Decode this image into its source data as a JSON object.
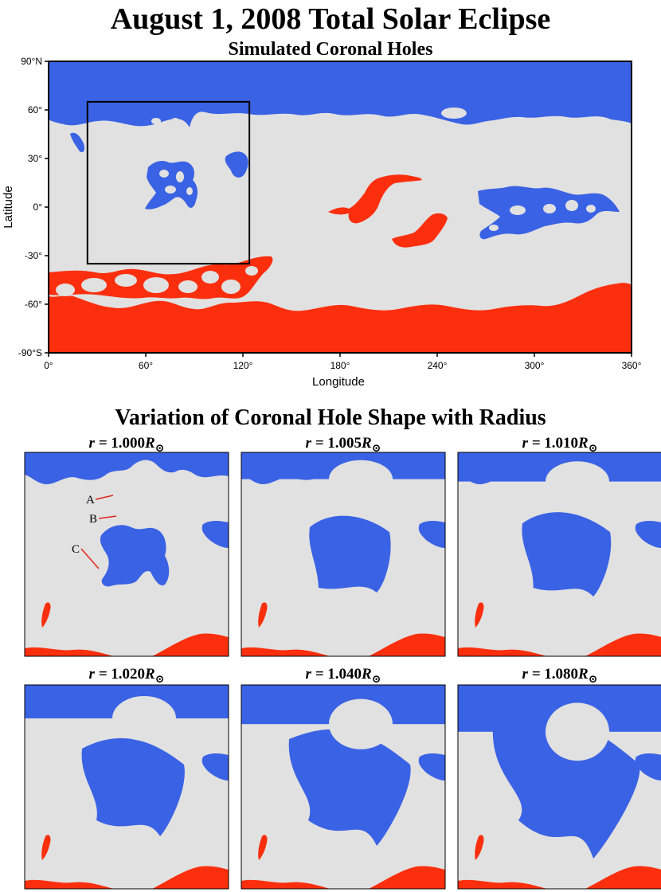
{
  "title": "August 1, 2008 Total Solar Eclipse",
  "subtitle": "Simulated Coronal Holes",
  "colors": {
    "background": "#e1e1e1",
    "north_polarity": "#3a62e4",
    "south_polarity": "#fb2f0d",
    "frame": "#000000"
  },
  "main_map": {
    "xlabel": "Longitude",
    "ylabel": "Latitude",
    "x_ticks": [
      "0°",
      "60°",
      "120°",
      "180°",
      "240°",
      "300°",
      "360°"
    ],
    "y_ticks": [
      "90°N",
      "60°",
      "30°",
      "0°",
      "-30°",
      "-60°",
      "-90°S"
    ],
    "xlim": [
      0,
      360
    ],
    "ylim": [
      -90,
      90
    ],
    "zoom_box": {
      "lon": [
        24,
        124
      ],
      "lat": [
        -35,
        65
      ]
    }
  },
  "section_title": "Variation of Coronal Hole Shape with Radius",
  "panels": [
    {
      "prefix": "r = ",
      "value": "1.000",
      "unit": "R",
      "subscript": "⊙"
    },
    {
      "prefix": "r = ",
      "value": "1.005",
      "unit": "R",
      "subscript": "⊙"
    },
    {
      "prefix": "r = ",
      "value": "1.010",
      "unit": "R",
      "subscript": "⊙"
    },
    {
      "prefix": "r = ",
      "value": "1.020",
      "unit": "R",
      "subscript": "⊙"
    },
    {
      "prefix": "r = ",
      "value": "1.040",
      "unit": "R",
      "subscript": "⊙"
    },
    {
      "prefix": "r = ",
      "value": "1.080",
      "unit": "R",
      "subscript": "⊙"
    }
  ],
  "annotations": [
    "A",
    "B",
    "C"
  ]
}
